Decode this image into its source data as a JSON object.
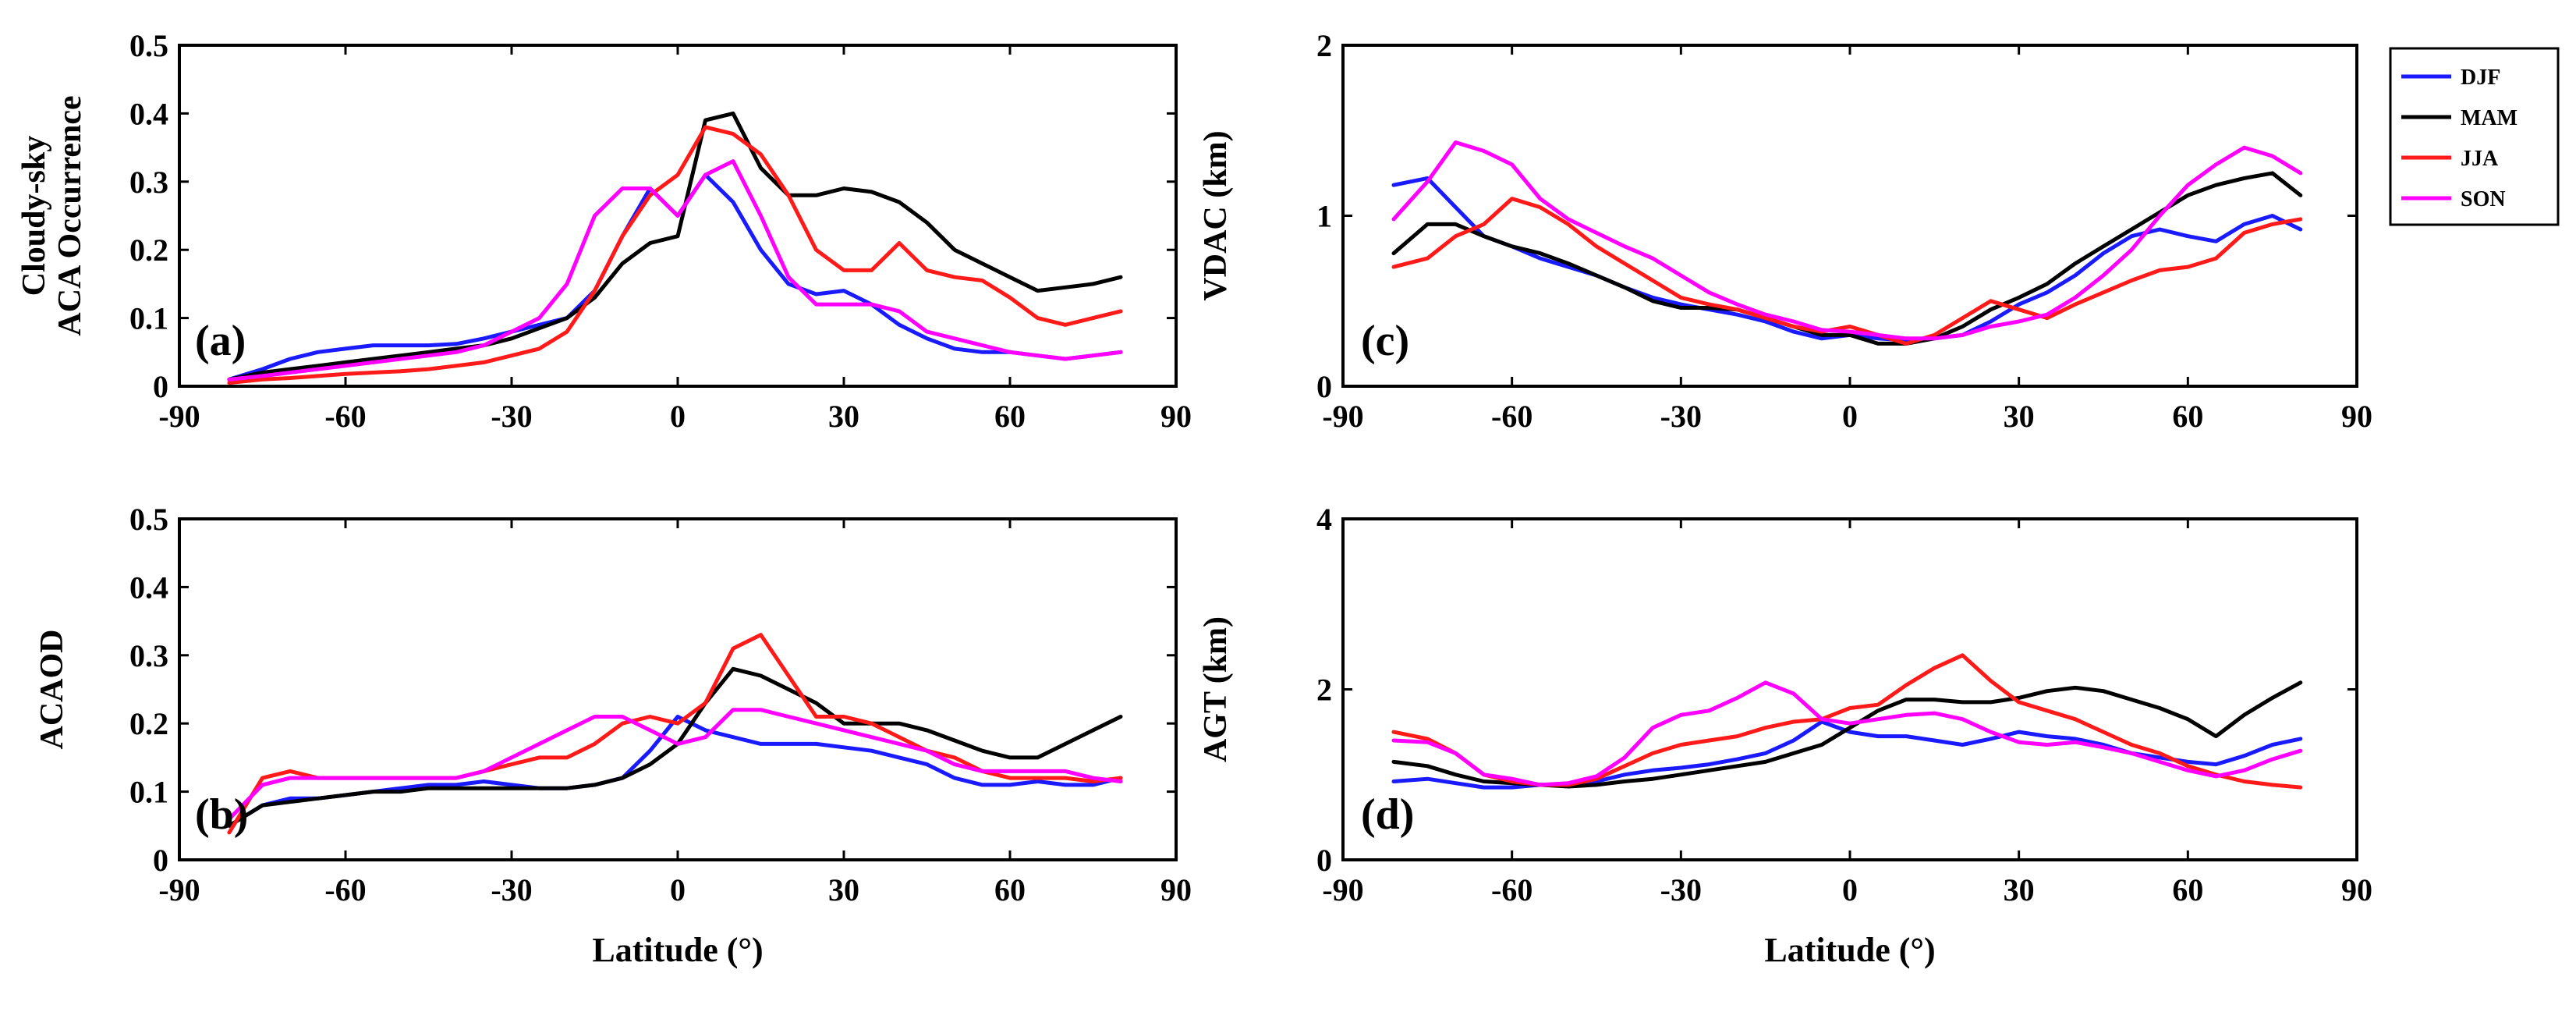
{
  "figure": {
    "legend": {
      "placement": "top-right",
      "entries": [
        {
          "name": "DJF",
          "color": "#1a1aff"
        },
        {
          "name": "MAM",
          "color": "#000000"
        },
        {
          "name": "JJA",
          "color": "#ff1a1a"
        },
        {
          "name": "SON",
          "color": "#ff00ff"
        }
      ]
    }
  },
  "chart_data": [
    {
      "type": "line",
      "panel": "(a)",
      "ylabel": [
        "Cloudy-sky",
        "ACA Occurrence"
      ],
      "xlabel": "",
      "xlim": [
        -90,
        90
      ],
      "ylim": [
        0,
        0.5
      ],
      "xticks": [
        "-90",
        "-60",
        "-30",
        "0",
        "30",
        "60",
        "90"
      ],
      "yticks": [
        "0",
        "0.1",
        "0.2",
        "0.3",
        "0.4",
        "0.5"
      ],
      "x": [
        -81,
        -75,
        -70,
        -65,
        -60,
        -55,
        -50,
        -45,
        -40,
        -35,
        -30,
        -25,
        -20,
        -15,
        -10,
        -5,
        0,
        5,
        10,
        15,
        20,
        25,
        30,
        35,
        40,
        45,
        50,
        55,
        60,
        65,
        70,
        75,
        80
      ],
      "series": [
        {
          "name": "DJF",
          "values": [
            0.01,
            0.025,
            0.04,
            0.05,
            0.055,
            0.06,
            0.06,
            0.06,
            0.062,
            0.07,
            0.08,
            0.09,
            0.1,
            0.14,
            0.22,
            0.29,
            0.25,
            0.31,
            0.27,
            0.2,
            0.15,
            0.135,
            0.14,
            0.12,
            0.09,
            0.07,
            0.055,
            0.05,
            0.05,
            0.045,
            0.04,
            0.045,
            0.05
          ]
        },
        {
          "name": "MAM",
          "values": [
            0.01,
            0.02,
            0.025,
            0.03,
            0.035,
            0.04,
            0.045,
            0.05,
            0.055,
            0.06,
            0.07,
            0.085,
            0.1,
            0.13,
            0.18,
            0.21,
            0.22,
            0.39,
            0.4,
            0.32,
            0.28,
            0.28,
            0.29,
            0.285,
            0.27,
            0.24,
            0.2,
            0.18,
            0.16,
            0.14,
            0.145,
            0.15,
            0.16
          ]
        },
        {
          "name": "JJA",
          "values": [
            0.005,
            0.01,
            0.012,
            0.015,
            0.018,
            0.02,
            0.022,
            0.025,
            0.03,
            0.035,
            0.045,
            0.055,
            0.08,
            0.14,
            0.22,
            0.28,
            0.31,
            0.38,
            0.37,
            0.34,
            0.28,
            0.2,
            0.17,
            0.17,
            0.21,
            0.17,
            0.16,
            0.155,
            0.13,
            0.1,
            0.09,
            0.1,
            0.11
          ]
        },
        {
          "name": "SON",
          "values": [
            0.01,
            0.015,
            0.02,
            0.025,
            0.03,
            0.035,
            0.04,
            0.045,
            0.05,
            0.06,
            0.08,
            0.1,
            0.15,
            0.25,
            0.29,
            0.29,
            0.25,
            0.31,
            0.33,
            0.25,
            0.16,
            0.12,
            0.12,
            0.12,
            0.11,
            0.08,
            0.07,
            0.06,
            0.05,
            0.045,
            0.04,
            0.045,
            0.05
          ]
        }
      ]
    },
    {
      "type": "line",
      "panel": "(b)",
      "ylabel": [
        "ACAOD"
      ],
      "xlabel": "Latitude (°)",
      "xlim": [
        -90,
        90
      ],
      "ylim": [
        0,
        0.5
      ],
      "xticks": [
        "-90",
        "-60",
        "-30",
        "0",
        "30",
        "60",
        "90"
      ],
      "yticks": [
        "0",
        "0.1",
        "0.2",
        "0.3",
        "0.4",
        "0.5"
      ],
      "x": [
        -81,
        -75,
        -70,
        -65,
        -60,
        -55,
        -50,
        -45,
        -40,
        -35,
        -30,
        -25,
        -20,
        -15,
        -10,
        -5,
        0,
        5,
        10,
        15,
        20,
        25,
        30,
        35,
        40,
        45,
        50,
        55,
        60,
        65,
        70,
        75,
        80
      ],
      "series": [
        {
          "name": "DJF",
          "values": [
            0.05,
            0.08,
            0.09,
            0.09,
            0.095,
            0.1,
            0.105,
            0.11,
            0.11,
            0.115,
            0.11,
            0.105,
            0.105,
            0.11,
            0.12,
            0.16,
            0.21,
            0.19,
            0.18,
            0.17,
            0.17,
            0.17,
            0.165,
            0.16,
            0.15,
            0.14,
            0.12,
            0.11,
            0.11,
            0.115,
            0.11,
            0.11,
            0.12
          ]
        },
        {
          "name": "MAM",
          "values": [
            0.05,
            0.08,
            0.085,
            0.09,
            0.095,
            0.1,
            0.1,
            0.105,
            0.105,
            0.105,
            0.105,
            0.105,
            0.105,
            0.11,
            0.12,
            0.14,
            0.17,
            0.23,
            0.28,
            0.27,
            0.25,
            0.23,
            0.2,
            0.2,
            0.2,
            0.19,
            0.175,
            0.16,
            0.15,
            0.15,
            0.17,
            0.19,
            0.21
          ]
        },
        {
          "name": "JJA",
          "values": [
            0.04,
            0.12,
            0.13,
            0.12,
            0.12,
            0.12,
            0.12,
            0.12,
            0.12,
            0.13,
            0.14,
            0.15,
            0.15,
            0.17,
            0.2,
            0.21,
            0.2,
            0.23,
            0.31,
            0.33,
            0.27,
            0.21,
            0.21,
            0.2,
            0.18,
            0.16,
            0.15,
            0.13,
            0.12,
            0.12,
            0.12,
            0.115,
            0.12
          ]
        },
        {
          "name": "SON",
          "values": [
            0.06,
            0.11,
            0.12,
            0.12,
            0.12,
            0.12,
            0.12,
            0.12,
            0.12,
            0.13,
            0.15,
            0.17,
            0.19,
            0.21,
            0.21,
            0.19,
            0.17,
            0.18,
            0.22,
            0.22,
            0.21,
            0.2,
            0.19,
            0.18,
            0.17,
            0.16,
            0.14,
            0.13,
            0.13,
            0.13,
            0.13,
            0.12,
            0.115
          ]
        }
      ]
    },
    {
      "type": "line",
      "panel": "(c)",
      "ylabel": [
        "VDAC (km)"
      ],
      "xlabel": "",
      "xlim": [
        -90,
        90
      ],
      "ylim": [
        0,
        2
      ],
      "xticks": [
        "-90",
        "-60",
        "-30",
        "0",
        "30",
        "60",
        "90"
      ],
      "yticks": [
        "0",
        "1",
        "2"
      ],
      "x": [
        -81,
        -75,
        -70,
        -65,
        -60,
        -55,
        -50,
        -45,
        -40,
        -35,
        -30,
        -25,
        -20,
        -15,
        -10,
        -5,
        0,
        5,
        10,
        15,
        20,
        25,
        30,
        35,
        40,
        45,
        50,
        55,
        60,
        65,
        70,
        75,
        80
      ],
      "series": [
        {
          "name": "DJF",
          "values": [
            1.18,
            1.22,
            1.05,
            0.88,
            0.82,
            0.75,
            0.7,
            0.65,
            0.58,
            0.52,
            0.48,
            0.45,
            0.42,
            0.38,
            0.32,
            0.28,
            0.3,
            0.28,
            0.27,
            0.28,
            0.3,
            0.38,
            0.48,
            0.55,
            0.65,
            0.78,
            0.88,
            0.92,
            0.88,
            0.85,
            0.95,
            1.0,
            0.92
          ]
        },
        {
          "name": "MAM",
          "values": [
            0.78,
            0.95,
            0.95,
            0.88,
            0.82,
            0.78,
            0.72,
            0.65,
            0.58,
            0.5,
            0.46,
            0.46,
            0.45,
            0.4,
            0.35,
            0.3,
            0.3,
            0.25,
            0.25,
            0.28,
            0.35,
            0.45,
            0.52,
            0.6,
            0.72,
            0.82,
            0.92,
            1.02,
            1.12,
            1.18,
            1.22,
            1.25,
            1.12
          ]
        },
        {
          "name": "JJA",
          "values": [
            0.7,
            0.75,
            0.88,
            0.95,
            1.1,
            1.05,
            0.95,
            0.82,
            0.72,
            0.62,
            0.52,
            0.48,
            0.45,
            0.4,
            0.35,
            0.32,
            0.35,
            0.3,
            0.25,
            0.3,
            0.4,
            0.5,
            0.45,
            0.4,
            0.48,
            0.55,
            0.62,
            0.68,
            0.7,
            0.75,
            0.9,
            0.95,
            0.98
          ]
        },
        {
          "name": "SON",
          "values": [
            0.98,
            1.2,
            1.43,
            1.38,
            1.3,
            1.1,
            0.98,
            0.9,
            0.82,
            0.75,
            0.65,
            0.55,
            0.48,
            0.42,
            0.38,
            0.33,
            0.32,
            0.3,
            0.28,
            0.28,
            0.3,
            0.35,
            0.38,
            0.42,
            0.52,
            0.65,
            0.8,
            1.0,
            1.18,
            1.3,
            1.4,
            1.35,
            1.25
          ]
        }
      ]
    },
    {
      "type": "line",
      "panel": "(d)",
      "ylabel": [
        "AGT (km)"
      ],
      "xlabel": "Latitude (°)",
      "xlim": [
        -90,
        90
      ],
      "ylim": [
        0,
        4
      ],
      "xticks": [
        "-90",
        "-60",
        "-30",
        "0",
        "30",
        "60",
        "90"
      ],
      "yticks": [
        "0",
        "2",
        "4"
      ],
      "x": [
        -81,
        -75,
        -70,
        -65,
        -60,
        -55,
        -50,
        -45,
        -40,
        -35,
        -30,
        -25,
        -20,
        -15,
        -10,
        -5,
        0,
        5,
        10,
        15,
        20,
        25,
        30,
        35,
        40,
        45,
        50,
        55,
        60,
        65,
        70,
        75,
        80
      ],
      "series": [
        {
          "name": "DJF",
          "values": [
            0.92,
            0.95,
            0.9,
            0.85,
            0.85,
            0.88,
            0.88,
            0.92,
            1.0,
            1.05,
            1.08,
            1.12,
            1.18,
            1.25,
            1.4,
            1.62,
            1.5,
            1.45,
            1.45,
            1.4,
            1.35,
            1.42,
            1.5,
            1.45,
            1.42,
            1.35,
            1.25,
            1.2,
            1.15,
            1.12,
            1.22,
            1.35,
            1.42
          ]
        },
        {
          "name": "MAM",
          "values": [
            1.15,
            1.1,
            1.0,
            0.92,
            0.9,
            0.88,
            0.86,
            0.88,
            0.92,
            0.95,
            1.0,
            1.05,
            1.1,
            1.15,
            1.25,
            1.35,
            1.55,
            1.75,
            1.88,
            1.88,
            1.85,
            1.85,
            1.9,
            1.98,
            2.02,
            1.98,
            1.88,
            1.78,
            1.65,
            1.45,
            1.7,
            1.9,
            2.08
          ]
        },
        {
          "name": "JJA",
          "values": [
            1.5,
            1.42,
            1.25,
            1.0,
            0.92,
            0.88,
            0.88,
            0.95,
            1.1,
            1.25,
            1.35,
            1.4,
            1.45,
            1.55,
            1.62,
            1.65,
            1.78,
            1.82,
            2.05,
            2.25,
            2.4,
            2.1,
            1.85,
            1.75,
            1.65,
            1.5,
            1.35,
            1.25,
            1.1,
            1.0,
            0.92,
            0.88,
            0.85
          ]
        },
        {
          "name": "SON",
          "values": [
            1.4,
            1.38,
            1.25,
            1.0,
            0.95,
            0.88,
            0.9,
            0.98,
            1.2,
            1.55,
            1.7,
            1.75,
            1.9,
            2.08,
            1.95,
            1.65,
            1.6,
            1.65,
            1.7,
            1.72,
            1.65,
            1.5,
            1.38,
            1.35,
            1.38,
            1.32,
            1.25,
            1.15,
            1.05,
            0.98,
            1.05,
            1.18,
            1.28
          ]
        }
      ]
    }
  ]
}
